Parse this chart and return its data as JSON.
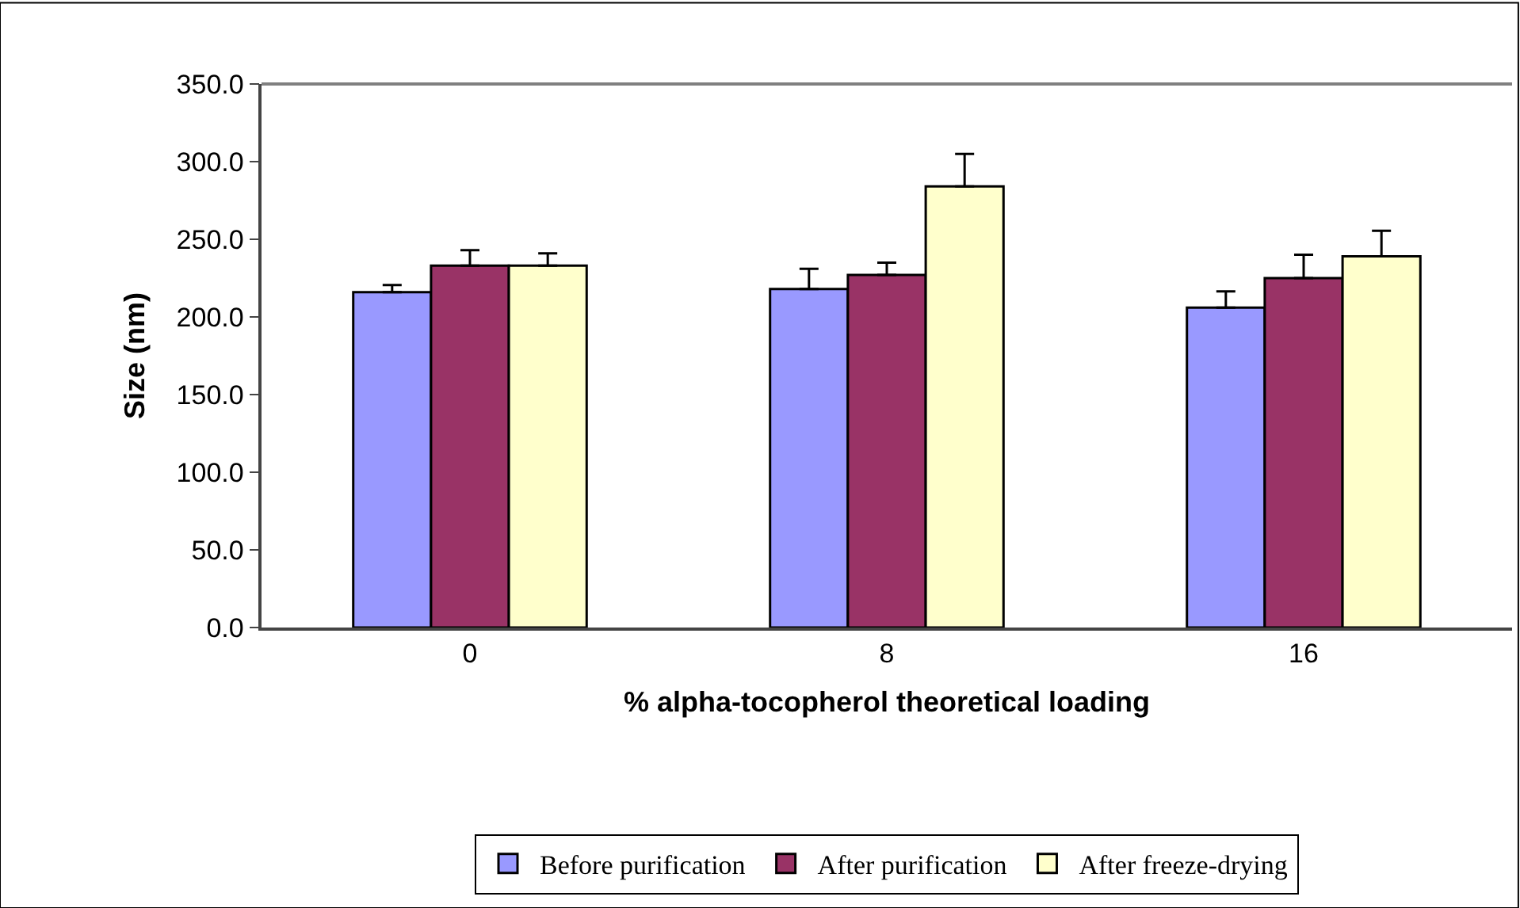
{
  "chart_data": {
    "type": "bar",
    "xlabel": "% alpha-tocopherol theoretical loading",
    "ylabel": "Size (nm)",
    "categories": [
      "0",
      "8",
      "16"
    ],
    "series": [
      {
        "name": "Before purification",
        "color": "#9999ff",
        "values": [
          216,
          218,
          206
        ],
        "errors": [
          4.5,
          13,
          10.5
        ]
      },
      {
        "name": "After purification",
        "color": "#993366",
        "values": [
          233,
          227,
          225
        ],
        "errors": [
          10,
          8,
          15
        ]
      },
      {
        "name": "After freeze-drying",
        "color": "#ffffcc",
        "values": [
          233,
          284,
          239
        ],
        "errors": [
          8,
          21,
          16.5
        ]
      }
    ],
    "ylim": [
      0,
      350
    ],
    "yticks": [
      {
        "value": 0,
        "label": "0.0"
      },
      {
        "value": 50,
        "label": "50.0"
      },
      {
        "value": 100,
        "label": "100.0"
      },
      {
        "value": 150,
        "label": "150.0"
      },
      {
        "value": 200,
        "label": "200.0"
      },
      {
        "value": 250,
        "label": "250.0"
      },
      {
        "value": 300,
        "label": "300.0"
      },
      {
        "value": 350,
        "label": "350.0"
      }
    ],
    "legend": "bottom"
  }
}
